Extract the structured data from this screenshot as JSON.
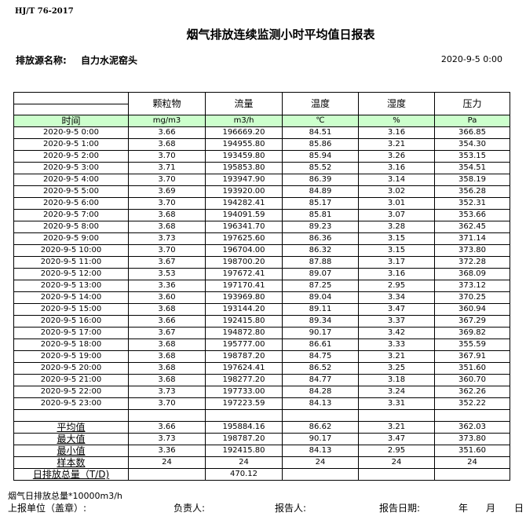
{
  "standard": "HJ/T  76-2017",
  "title": "烟气排放连续监测小时平均值日报表",
  "source_label": "排放源名称:",
  "source_value": "自力水泥窑头",
  "report_datetime": "2020-9-5 0:00",
  "table": {
    "columns": [
      "颗粒物",
      "流量",
      "温度",
      "湿度",
      "压力"
    ],
    "units": [
      "mg/m3",
      "m3/h",
      "℃",
      "%",
      "Pa"
    ],
    "time_label": "时间",
    "rows": [
      [
        "2020-9-5 0:00",
        "3.66",
        "196669.20",
        "84.51",
        "3.16",
        "366.85"
      ],
      [
        "2020-9-5 1:00",
        "3.68",
        "194955.80",
        "85.86",
        "3.21",
        "354.30"
      ],
      [
        "2020-9-5 2:00",
        "3.70",
        "193459.80",
        "85.94",
        "3.26",
        "353.15"
      ],
      [
        "2020-9-5 3:00",
        "3.71",
        "195853.80",
        "85.52",
        "3.16",
        "354.51"
      ],
      [
        "2020-9-5 4:00",
        "3.70",
        "193947.90",
        "86.39",
        "3.14",
        "358.19"
      ],
      [
        "2020-9-5 5:00",
        "3.69",
        "193920.00",
        "84.89",
        "3.02",
        "356.28"
      ],
      [
        "2020-9-5 6:00",
        "3.70",
        "194282.41",
        "85.17",
        "3.01",
        "352.31"
      ],
      [
        "2020-9-5 7:00",
        "3.68",
        "194091.59",
        "85.81",
        "3.07",
        "353.66"
      ],
      [
        "2020-9-5 8:00",
        "3.68",
        "196341.70",
        "89.23",
        "3.28",
        "362.45"
      ],
      [
        "2020-9-5 9:00",
        "3.73",
        "197625.60",
        "86.36",
        "3.15",
        "371.14"
      ],
      [
        "2020-9-5 10:00",
        "3.70",
        "196704.00",
        "86.32",
        "3.15",
        "373.80"
      ],
      [
        "2020-9-5 11:00",
        "3.67",
        "198700.20",
        "87.88",
        "3.17",
        "372.28"
      ],
      [
        "2020-9-5 12:00",
        "3.53",
        "197672.41",
        "89.07",
        "3.16",
        "368.09"
      ],
      [
        "2020-9-5 13:00",
        "3.36",
        "197170.41",
        "87.25",
        "2.95",
        "373.12"
      ],
      [
        "2020-9-5 14:00",
        "3.60",
        "193969.80",
        "89.04",
        "3.34",
        "370.25"
      ],
      [
        "2020-9-5 15:00",
        "3.68",
        "193144.20",
        "89.11",
        "3.47",
        "360.94"
      ],
      [
        "2020-9-5 16:00",
        "3.66",
        "192415.80",
        "89.34",
        "3.37",
        "367.29"
      ],
      [
        "2020-9-5 17:00",
        "3.67",
        "194872.80",
        "90.17",
        "3.42",
        "369.82"
      ],
      [
        "2020-9-5 18:00",
        "3.68",
        "195777.00",
        "86.61",
        "3.33",
        "355.59"
      ],
      [
        "2020-9-5 19:00",
        "3.68",
        "198787.20",
        "84.75",
        "3.21",
        "367.91"
      ],
      [
        "2020-9-5 20:00",
        "3.68",
        "197624.41",
        "86.52",
        "3.25",
        "351.60"
      ],
      [
        "2020-9-5 21:00",
        "3.68",
        "198277.20",
        "84.77",
        "3.18",
        "360.70"
      ],
      [
        "2020-9-5 22:00",
        "3.73",
        "197733.00",
        "84.28",
        "3.24",
        "362.26"
      ],
      [
        "2020-9-5 23:00",
        "3.70",
        "197223.59",
        "84.13",
        "3.31",
        "352.22"
      ]
    ],
    "summary": [
      [
        "平均值",
        "3.66",
        "195884.16",
        "86.62",
        "3.21",
        "362.03"
      ],
      [
        "最大值",
        "3.73",
        "198787.20",
        "90.17",
        "3.47",
        "373.80"
      ],
      [
        "最小值",
        "3.36",
        "192415.80",
        "84.13",
        "2.95",
        "351.60"
      ],
      [
        "样本数",
        "24",
        "24",
        "24",
        "24",
        "24"
      ],
      [
        "日排放总量（T/D)",
        "",
        "470.12",
        "",
        "",
        ""
      ]
    ]
  },
  "footer": {
    "note": "烟气日排放总量*10000m3/h",
    "unit_label": "上报单位（盖章）:",
    "responsible_label": "负责人:",
    "reporter_label": "报告人:",
    "report_date_label": "报告日期:",
    "year": "年",
    "month": "月",
    "day": "日"
  }
}
